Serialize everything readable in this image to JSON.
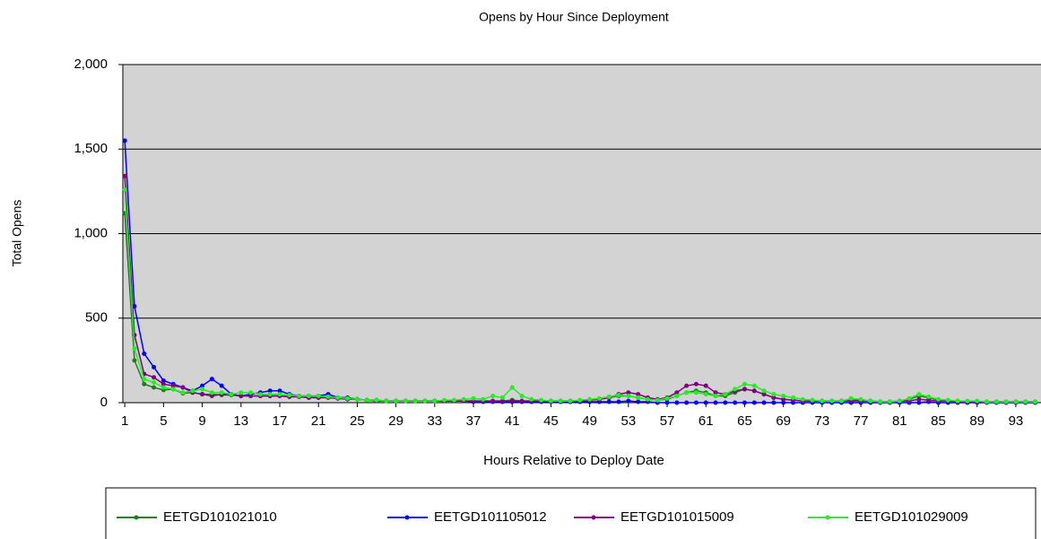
{
  "chart_data": {
    "type": "line",
    "title": "Opens by Hour Since Deployment",
    "x_label": "Hours Relative to Deploy Date",
    "y_label": "Total Opens",
    "x": [
      1,
      2,
      3,
      4,
      5,
      6,
      7,
      8,
      9,
      10,
      11,
      12,
      13,
      14,
      15,
      16,
      17,
      18,
      19,
      20,
      21,
      22,
      23,
      24,
      25,
      26,
      27,
      28,
      29,
      30,
      31,
      32,
      33,
      34,
      35,
      36,
      37,
      38,
      39,
      40,
      41,
      42,
      43,
      44,
      45,
      46,
      47,
      48,
      49,
      50,
      51,
      52,
      53,
      54,
      55,
      56,
      57,
      58,
      59,
      60,
      61,
      62,
      63,
      64,
      65,
      66,
      67,
      68,
      69,
      70,
      71,
      72,
      73,
      74,
      75,
      76,
      77,
      78,
      79,
      80,
      81,
      82,
      83,
      84,
      85,
      86,
      87,
      88,
      89,
      90,
      91,
      92,
      93,
      94,
      95
    ],
    "xlim": [
      0.8,
      95.6
    ],
    "xticks": [
      1,
      5,
      9,
      13,
      17,
      21,
      25,
      29,
      33,
      37,
      41,
      45,
      49,
      53,
      57,
      61,
      65,
      69,
      73,
      77,
      81,
      85,
      89,
      93
    ],
    "ylim": [
      0,
      2000
    ],
    "yticks": [
      0,
      500,
      {
        "value": 1000,
        "label": "1,000"
      },
      {
        "value": 1500,
        "label": "1,500"
      },
      {
        "value": 2000,
        "label": "2,000"
      }
    ],
    "grid": true,
    "legend": "bottom",
    "series": [
      {
        "name": "EETGD101021010",
        "color": "#1a7f1a",
        "values": [
          1120,
          250,
          110,
          90,
          75,
          80,
          55,
          60,
          50,
          50,
          45,
          45,
          40,
          40,
          40,
          40,
          40,
          35,
          35,
          30,
          30,
          30,
          25,
          25,
          20,
          15,
          10,
          10,
          10,
          10,
          10,
          10,
          10,
          10,
          10,
          10,
          10,
          10,
          10,
          10,
          15,
          10,
          10,
          10,
          10,
          10,
          10,
          10,
          15,
          20,
          30,
          40,
          40,
          30,
          20,
          15,
          20,
          40,
          60,
          70,
          60,
          40,
          40,
          60,
          80,
          70,
          50,
          30,
          20,
          15,
          10,
          10,
          10,
          10,
          10,
          15,
          15,
          10,
          5,
          5,
          10,
          20,
          40,
          30,
          15,
          10,
          10,
          5,
          5,
          5,
          5,
          5,
          5,
          5,
          5
        ]
      },
      {
        "name": "EETGD101105012",
        "color": "#0000ff",
        "values": [
          1550,
          570,
          290,
          210,
          130,
          110,
          90,
          70,
          100,
          140,
          100,
          50,
          40,
          50,
          60,
          70,
          70,
          50,
          40,
          40,
          40,
          50,
          30,
          30,
          20,
          15,
          15,
          10,
          10,
          10,
          10,
          10,
          10,
          10,
          10,
          10,
          5,
          5,
          5,
          5,
          5,
          5,
          5,
          5,
          5,
          5,
          5,
          5,
          5,
          5,
          5,
          5,
          10,
          5,
          5,
          0,
          0,
          0,
          0,
          0,
          0,
          0,
          0,
          0,
          0,
          0,
          0,
          0,
          0,
          0,
          0,
          0,
          0,
          0,
          0,
          0,
          0,
          0,
          0,
          0,
          0,
          0,
          0,
          5,
          0,
          0,
          0,
          0,
          0,
          0,
          0,
          0,
          0,
          0,
          0
        ]
      },
      {
        "name": "EETGD101015009",
        "color": "#800080",
        "values": [
          1340,
          400,
          170,
          150,
          110,
          100,
          90,
          60,
          50,
          40,
          50,
          50,
          40,
          40,
          40,
          40,
          40,
          35,
          35,
          30,
          30,
          30,
          25,
          20,
          20,
          15,
          10,
          10,
          10,
          10,
          10,
          10,
          10,
          10,
          10,
          10,
          10,
          10,
          10,
          10,
          10,
          10,
          10,
          10,
          10,
          10,
          10,
          10,
          15,
          20,
          30,
          50,
          60,
          50,
          30,
          20,
          30,
          60,
          100,
          110,
          100,
          60,
          50,
          70,
          80,
          70,
          50,
          30,
          20,
          15,
          10,
          10,
          10,
          10,
          10,
          10,
          10,
          10,
          5,
          5,
          10,
          10,
          20,
          15,
          10,
          10,
          5,
          5,
          5,
          5,
          5,
          5,
          5,
          5,
          5
        ]
      },
      {
        "name": "EETGD101029009",
        "color": "#22ee22",
        "values": [
          1260,
          320,
          140,
          120,
          90,
          80,
          60,
          70,
          80,
          60,
          60,
          50,
          60,
          60,
          50,
          50,
          50,
          45,
          40,
          40,
          40,
          35,
          30,
          25,
          20,
          15,
          15,
          10,
          10,
          10,
          10,
          10,
          10,
          15,
          15,
          20,
          25,
          20,
          40,
          30,
          90,
          40,
          20,
          15,
          10,
          10,
          10,
          15,
          20,
          25,
          35,
          45,
          40,
          30,
          20,
          15,
          25,
          40,
          60,
          60,
          50,
          40,
          50,
          80,
          110,
          100,
          70,
          50,
          40,
          30,
          20,
          15,
          10,
          10,
          10,
          25,
          20,
          10,
          5,
          5,
          10,
          25,
          50,
          35,
          20,
          15,
          10,
          10,
          10,
          5,
          5,
          5,
          5,
          5,
          5
        ]
      }
    ]
  }
}
